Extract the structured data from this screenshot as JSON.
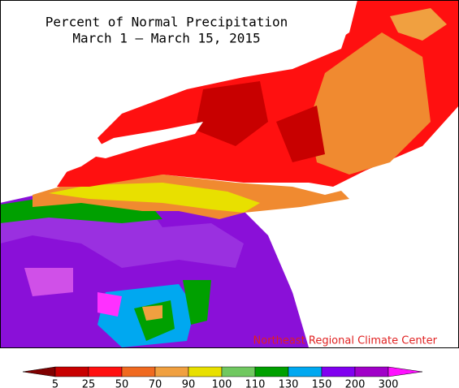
{
  "map": {
    "title": "Percent of Normal Precipitation",
    "subtitle": "March 1 — March 15, 2015",
    "credit": "Northeast Regional Climate Center",
    "legend": {
      "ticks": [
        5,
        25,
        50,
        70,
        90,
        100,
        110,
        130,
        150,
        200,
        300
      ],
      "colors": [
        "#800000",
        "#c80000",
        "#ff1010",
        "#f06a20",
        "#f0a040",
        "#e8e000",
        "#70c860",
        "#00a000",
        "#00a8f0",
        "#8000f0",
        "#a000c8",
        "#ff10ff"
      ]
    }
  }
}
